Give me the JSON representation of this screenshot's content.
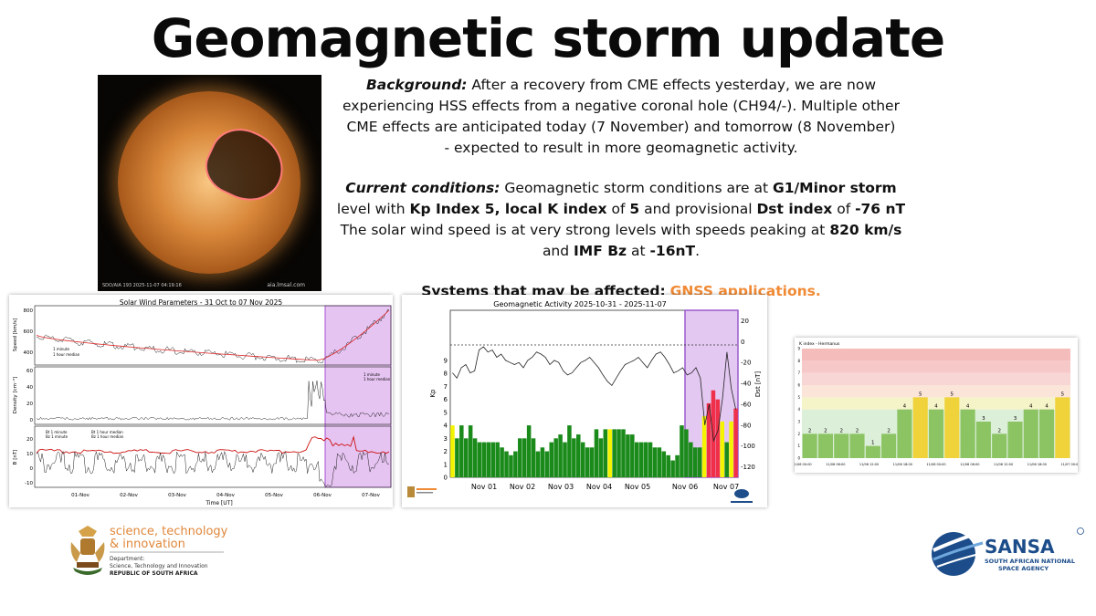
{
  "title": "Geomagnetic storm update",
  "sun_image": {
    "caption_left": "SDO/AIA 193 2025-11-07 04:19:16",
    "caption_right": "aia.lmsal.com"
  },
  "background": {
    "label": "Background:",
    "text1": " After a recovery from CME effects yesterday, we are now experiencing HSS effects from a negative coronal hole (CH94/-).  Multiple other CME effects are anticipated today (7 November) and tomorrow (8 November)",
    "text2": "-  expected to result in more geomagnetic activity."
  },
  "conditions": {
    "label": "Current conditions:",
    "t1": " Geomagnetic storm conditions are at ",
    "b1": "G1/Minor storm",
    "t2": " level with ",
    "b2": "Kp Index 5, local K index",
    "t3": " of ",
    "b3": "5",
    "t4": " and provisional ",
    "b4": "Dst index",
    "t5": " of ",
    "b5": "-76 nT",
    "w1": "The solar wind speed is at very strong levels with speeds peaking at ",
    "wb1": "820 km/s",
    "w2": " and ",
    "wb2": "IMF Bz",
    "w3": " at ",
    "wb3": "-16nT",
    "w4": "."
  },
  "systems": {
    "label": "Systems that may be affected:",
    "value": "GNSS applications."
  },
  "colors": {
    "accent_orange": "#f08a35",
    "kp_green": "#1a8a1a",
    "kp_yellow": "#f4f400",
    "kp_red": "#f0304a",
    "highlight_purple": "#cc88ee"
  },
  "solar_wind_chart": {
    "title": "Solar Wind Parameters - 31 Oct to 07 Nov 2025",
    "ylabels": [
      "Speed [km/s]",
      "Density [cm⁻³]",
      "B [nT]"
    ],
    "xticks": [
      "01-Nov",
      "02-Nov",
      "03-Nov",
      "04-Nov",
      "05-Nov",
      "06-Nov",
      "07-Nov"
    ],
    "xlabel": "Time [UT]",
    "speed_ticks": [
      "800",
      "600",
      "400"
    ],
    "density_ticks": [
      "60",
      "40",
      "20",
      "0"
    ],
    "b_ticks": [
      "20",
      "10",
      "0",
      "-10"
    ],
    "legend_speed": [
      "1 minute",
      "1 hour median"
    ],
    "legend_density": [
      "1 minute",
      "1 hour median"
    ],
    "legend_b": [
      "Bt 1 minute",
      "Bz 1 minute",
      "Bt 1 hour median",
      "Bz 1 hour median"
    ]
  },
  "kp_chart": {
    "title": "Geomagnetic Activity     2025-10-31 - 2025-11-07",
    "ylabel_left": "Kp",
    "ylabel_right": "Dst [nT]",
    "kp_ticks": [
      "9",
      "8",
      "7",
      "6",
      "5",
      "4",
      "3",
      "2",
      "1",
      "0"
    ],
    "dst_ticks": [
      "20",
      "0",
      "-20",
      "-40",
      "-60",
      "-80",
      "-100",
      "-120"
    ],
    "xticks": [
      "Nov 01",
      "Nov 02",
      "Nov 03",
      "Nov 04",
      "Nov 05",
      "Nov 06",
      "Nov 07"
    ],
    "kp_values": [
      4,
      3,
      4,
      3,
      4,
      3,
      2.7,
      2.7,
      2.7,
      2.7,
      2.7,
      2.3,
      2,
      1.7,
      2,
      3,
      3,
      4,
      3,
      2,
      2.3,
      2,
      2.7,
      3,
      3.3,
      2.7,
      4,
      3,
      3.3,
      2.7,
      2.3,
      2.3,
      3.7,
      3,
      3.7,
      3.7,
      3.7,
      3.7,
      3.7,
      3.3,
      3.3,
      2.7,
      2.7,
      2.7,
      2.7,
      2.3,
      2.3,
      2,
      1.7,
      1.3,
      1.7,
      4,
      3.7,
      2.7,
      2.3,
      2.3,
      4.7,
      5.7,
      6.7,
      6,
      4.3,
      2.7,
      4.3,
      5.3
    ],
    "dst_values": [
      -30,
      -35,
      -25,
      -22,
      -30,
      -28,
      -8,
      -5,
      -10,
      -8,
      -15,
      -12,
      -18,
      -20,
      -22,
      -20,
      -25,
      -18,
      -15,
      -10,
      -12,
      -15,
      -22,
      -18,
      -20,
      -28,
      -32,
      -30,
      -25,
      -20,
      -18,
      -15,
      -20,
      -25,
      -32,
      -38,
      -42,
      -35,
      -28,
      -22,
      -20,
      -18,
      -15,
      -20,
      -25,
      -18,
      -12,
      -10,
      -15,
      -22,
      -30,
      -28,
      -25,
      -32,
      -30,
      -25,
      -35,
      -80,
      -60,
      -95,
      -85,
      -55,
      -10,
      -45,
      -65
    ],
    "kp_ymax": 9,
    "dst_range": [
      -130,
      30
    ]
  },
  "k_index_chart": {
    "title": "K index - Hermanus",
    "bar_values": [
      2,
      2,
      2,
      2,
      1,
      2,
      4,
      5,
      4,
      5,
      4,
      3,
      2,
      3,
      4,
      4,
      5
    ],
    "bar_labels": [
      "2",
      "2",
      "2",
      "2",
      "1",
      "2",
      "4",
      "5",
      "4",
      "5",
      "4",
      "3",
      "2",
      "3",
      "4",
      "4",
      "5"
    ],
    "y_ticks": [
      "9",
      "8",
      "7",
      "6",
      "5",
      "4",
      "3",
      "2",
      "1",
      "0"
    ],
    "x_ticks": [
      "11/06 00:00",
      "11/06 06:00",
      "11/06 12:00",
      "11/06 18:00",
      "11/06 00:00",
      "11/06 06:00",
      "11/06 12:00",
      "11/06 18:00",
      "11/07 00:00"
    ]
  },
  "logo_left": {
    "line1": "science, technology",
    "line2": "& innovation",
    "line3": "Department:",
    "line4": "Science, Technology and Innovation",
    "line5": "REPUBLIC OF SOUTH AFRICA"
  },
  "logo_right": {
    "word": "SANSA",
    "line1": "SOUTH AFRICAN NATIONAL",
    "line2": "SPACE AGENCY"
  }
}
